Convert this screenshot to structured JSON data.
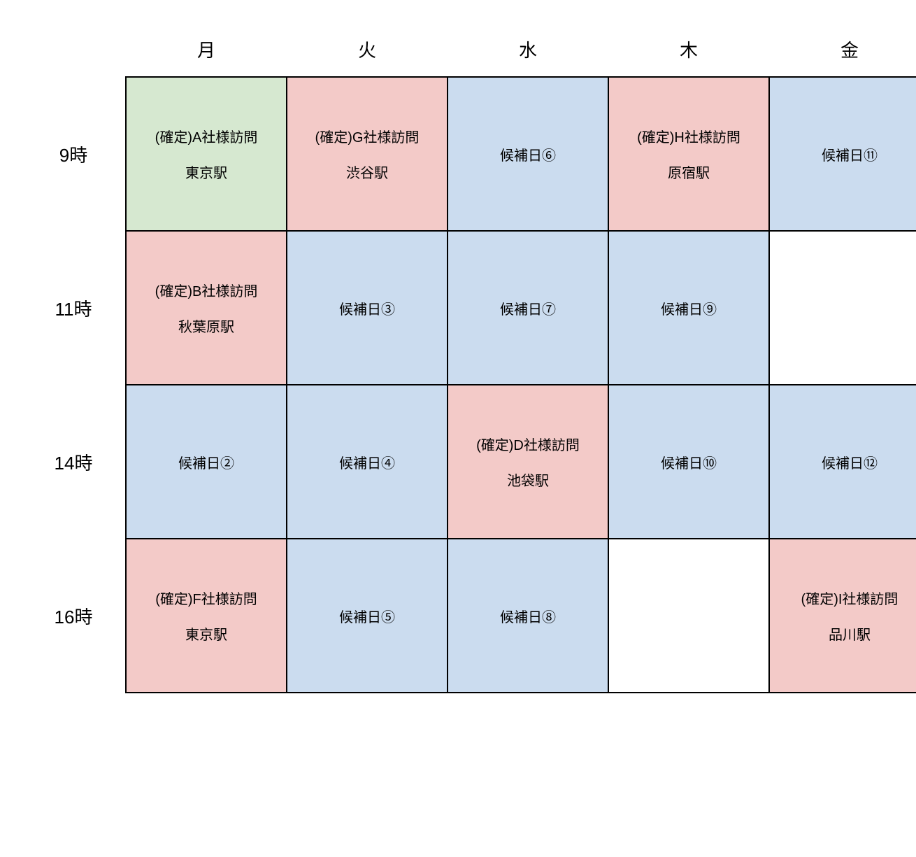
{
  "colors": {
    "green": "#d6e8d0",
    "pink": "#f3cac8",
    "blue": "#cbdcef",
    "blank": "#ffffff",
    "border": "#000000"
  },
  "columns": [
    "月",
    "火",
    "水",
    "木",
    "金"
  ],
  "rows": [
    "9時",
    "11時",
    "14時",
    "16時"
  ],
  "cells": [
    [
      {
        "line1": "(確定)A社様訪問",
        "line2": "東京駅",
        "color": "green"
      },
      {
        "line1": "(確定)G社様訪問",
        "line2": "渋谷駅",
        "color": "pink"
      },
      {
        "single": "候補日⑥",
        "color": "blue"
      },
      {
        "line1": "(確定)H社様訪問",
        "line2": "原宿駅",
        "color": "pink"
      },
      {
        "single": "候補日⑪",
        "color": "blue"
      }
    ],
    [
      {
        "line1": "(確定)B社様訪問",
        "line2": "秋葉原駅",
        "color": "pink"
      },
      {
        "single": "候補日③",
        "color": "blue"
      },
      {
        "single": "候補日⑦",
        "color": "blue"
      },
      {
        "single": "候補日⑨",
        "color": "blue"
      },
      {
        "color": "blank"
      }
    ],
    [
      {
        "single": "候補日②",
        "color": "blue"
      },
      {
        "single": "候補日④",
        "color": "blue"
      },
      {
        "line1": "(確定)D社様訪問",
        "line2": "池袋駅",
        "color": "pink"
      },
      {
        "single": "候補日⑩",
        "color": "blue"
      },
      {
        "single": "候補日⑫",
        "color": "blue"
      }
    ],
    [
      {
        "line1": "(確定)F社様訪問",
        "line2": "東京駅",
        "color": "pink"
      },
      {
        "single": "候補日⑤",
        "color": "blue"
      },
      {
        "single": "候補日⑧",
        "color": "blue"
      },
      {
        "color": "blank"
      },
      {
        "line1": "(確定)I社様訪問",
        "line2": "品川駅",
        "color": "pink"
      }
    ]
  ]
}
